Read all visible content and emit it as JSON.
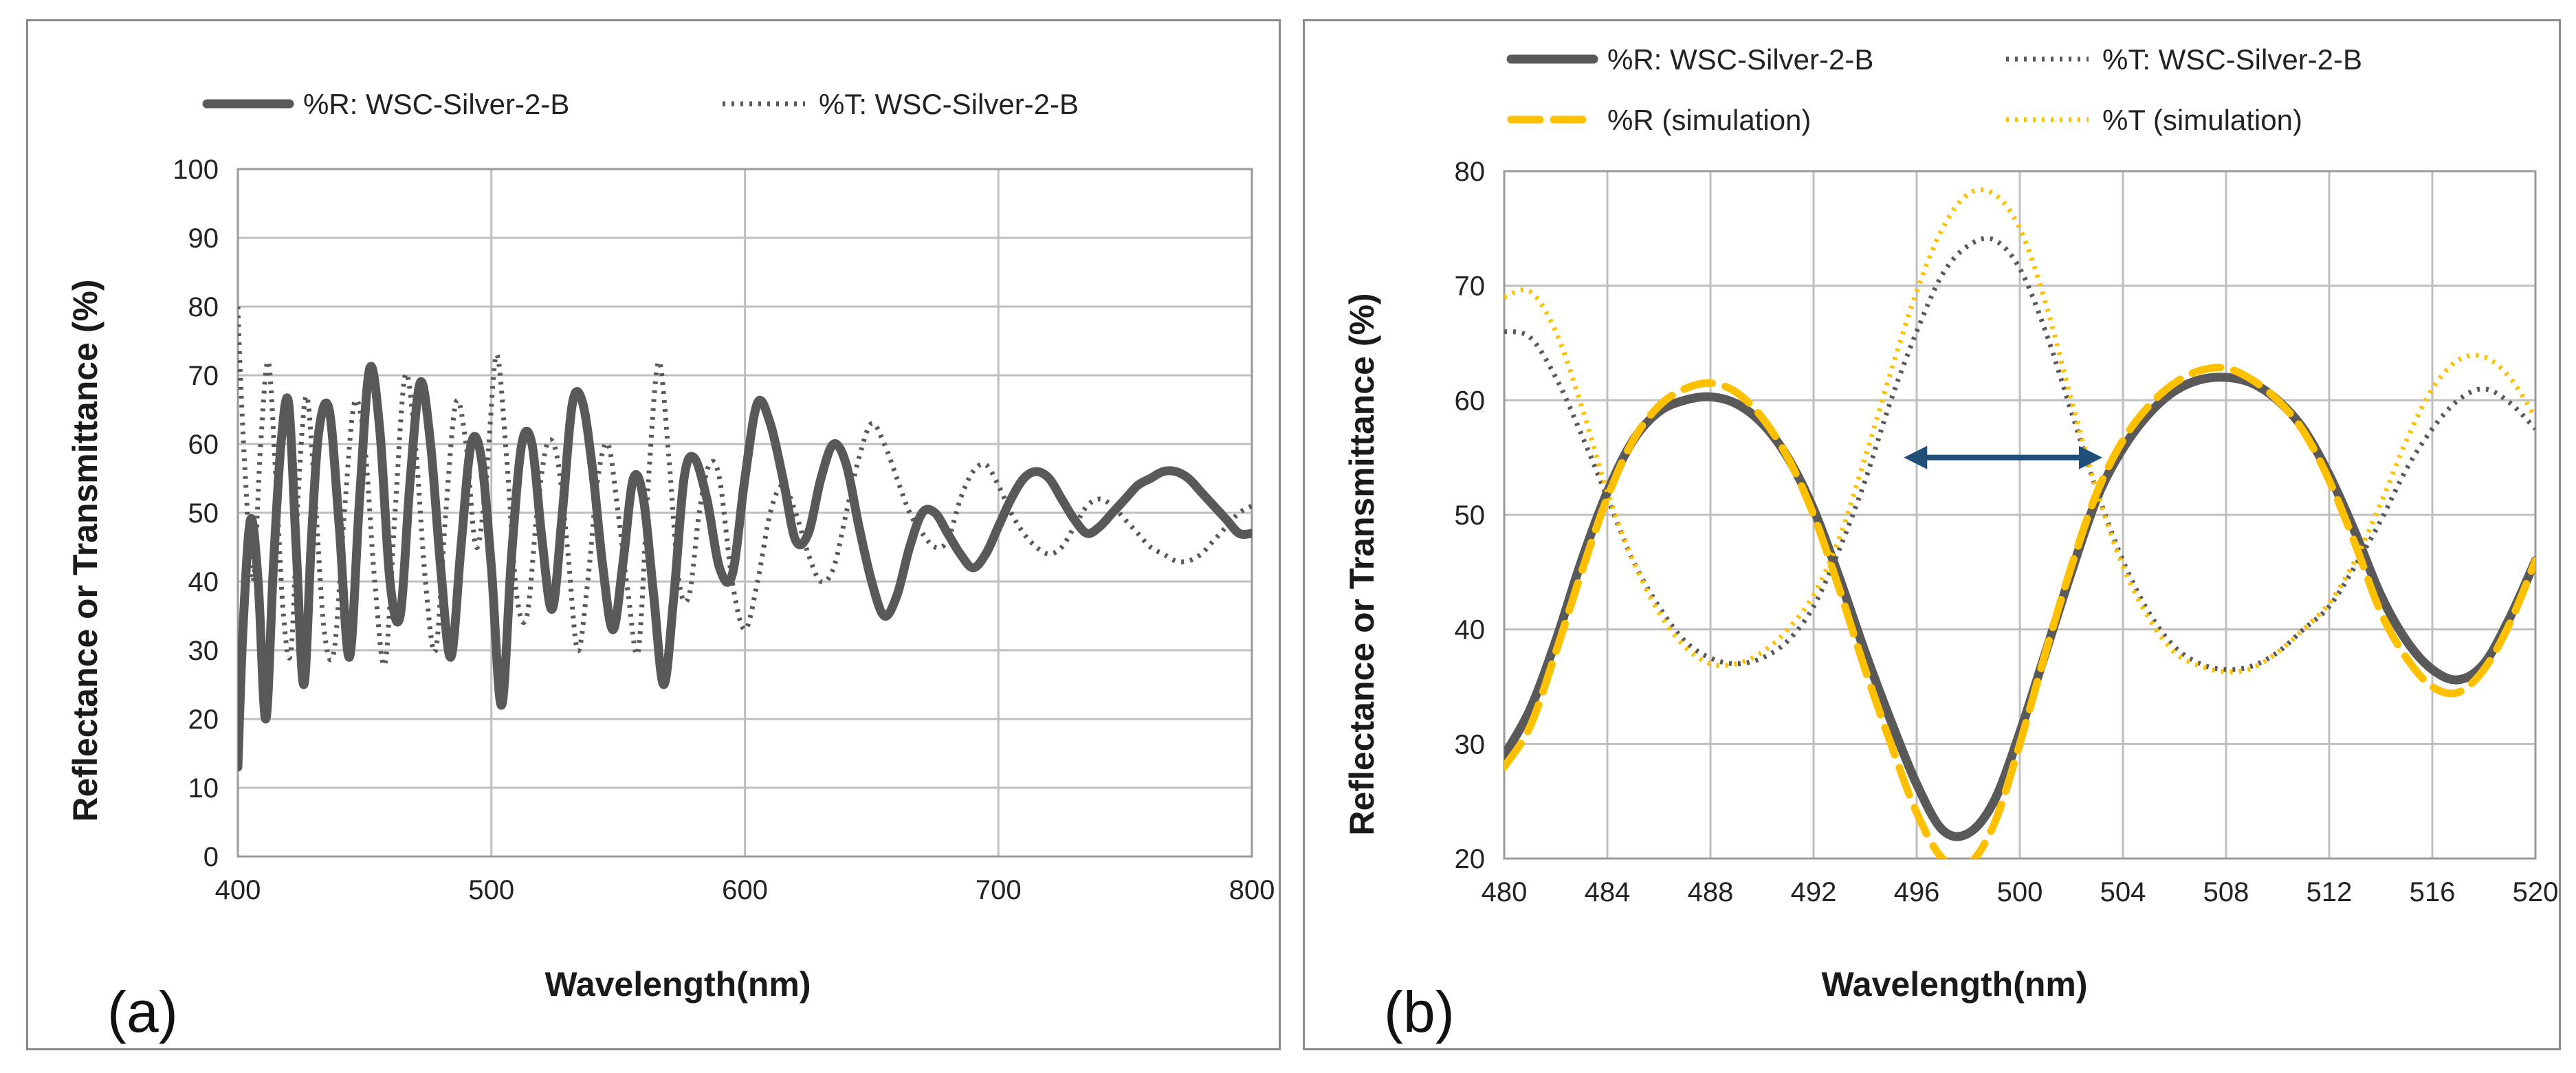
{
  "colors": {
    "measured": "#595959",
    "simulation": "#FFC000",
    "arrow": "#1F4E79",
    "grid": "#BFBFBF"
  },
  "chart_data": [
    {
      "type": "line",
      "panel_label": "(a)",
      "xlabel": "Wavelength(nm)",
      "ylabel": "Reflectance or Transmittance (%)",
      "xlim": [
        400,
        800
      ],
      "ylim": [
        0,
        100
      ],
      "xticks": [
        400,
        500,
        600,
        700,
        800
      ],
      "yticks": [
        0,
        10,
        20,
        30,
        40,
        50,
        60,
        70,
        80,
        90,
        100
      ],
      "grid": true,
      "legend": "top",
      "series": [
        {
          "name": "%R: WSC-Silver-2-B",
          "style": "solid",
          "color_key": "measured",
          "x": [
            400,
            402,
            405,
            408,
            411,
            414,
            417,
            420,
            423,
            426,
            429,
            432,
            436,
            440,
            444,
            448,
            452,
            456,
            460,
            464,
            468,
            472,
            476,
            480,
            484,
            488,
            492,
            496,
            500,
            504,
            508,
            512,
            516,
            520,
            524,
            528,
            532,
            536,
            540,
            544,
            548,
            552,
            556,
            560,
            564,
            568,
            572,
            576,
            580,
            585,
            590,
            595,
            600,
            605,
            610,
            615,
            620,
            625,
            630,
            635,
            640,
            645,
            650,
            655,
            660,
            665,
            670,
            675,
            680,
            685,
            690,
            695,
            700,
            705,
            710,
            715,
            720,
            725,
            730,
            735,
            740,
            745,
            750,
            755,
            760,
            765,
            770,
            775,
            780,
            785,
            790,
            795,
            800
          ],
          "y": [
            13,
            33,
            49,
            40,
            20,
            42,
            60,
            66,
            45,
            25,
            46,
            62,
            65,
            48,
            29,
            52,
            71,
            62,
            40,
            35,
            55,
            69,
            60,
            42,
            29,
            45,
            60,
            58,
            42,
            22,
            44,
            60,
            60,
            46,
            36,
            50,
            66,
            66,
            56,
            42,
            33,
            43,
            55,
            52,
            38,
            25,
            38,
            55,
            58,
            52,
            42,
            41,
            55,
            66,
            63,
            55,
            46,
            47,
            55,
            60,
            57,
            48,
            40,
            35,
            38,
            45,
            50,
            50,
            47,
            44,
            42,
            44,
            48,
            52,
            55,
            56,
            55,
            52,
            49,
            47,
            48,
            50,
            52,
            54,
            55,
            56,
            56,
            55,
            53,
            51,
            49,
            47,
            47
          ]
        },
        {
          "name": "%T: WSC-Silver-2-B",
          "style": "dotted",
          "color_key": "measured",
          "x": [
            400,
            401,
            403,
            406,
            409,
            412,
            415,
            418,
            421,
            424,
            427,
            430,
            434,
            438,
            442,
            446,
            450,
            454,
            458,
            462,
            466,
            470,
            474,
            478,
            482,
            486,
            490,
            494,
            498,
            502,
            506,
            510,
            514,
            518,
            522,
            526,
            530,
            534,
            538,
            542,
            546,
            550,
            554,
            558,
            562,
            566,
            570,
            574,
            578,
            582,
            586,
            590,
            595,
            600,
            605,
            610,
            615,
            620,
            625,
            630,
            635,
            640,
            645,
            650,
            655,
            660,
            665,
            670,
            675,
            680,
            685,
            690,
            695,
            700,
            705,
            710,
            715,
            720,
            725,
            730,
            735,
            740,
            745,
            750,
            755,
            760,
            765,
            770,
            775,
            780,
            785,
            790,
            795,
            800
          ],
          "y": [
            80,
            70,
            55,
            40,
            60,
            72,
            55,
            35,
            30,
            54,
            67,
            55,
            33,
            30,
            50,
            66,
            60,
            40,
            28,
            50,
            70,
            60,
            40,
            30,
            50,
            66,
            60,
            45,
            55,
            73,
            58,
            38,
            35,
            50,
            60,
            58,
            45,
            30,
            40,
            55,
            60,
            50,
            38,
            30,
            55,
            72,
            58,
            40,
            38,
            50,
            57,
            55,
            40,
            33,
            40,
            50,
            54,
            50,
            44,
            40,
            42,
            50,
            58,
            63,
            60,
            55,
            50,
            47,
            45,
            46,
            52,
            56,
            57,
            54,
            50,
            47,
            45,
            44,
            45,
            48,
            51,
            52,
            51,
            49,
            47,
            45,
            44,
            43,
            43,
            44,
            46,
            48,
            50,
            51
          ]
        }
      ]
    },
    {
      "type": "line",
      "panel_label": "(b)",
      "xlabel": "Wavelength(nm)",
      "ylabel": "Reflectance or Transmittance (%)",
      "xlim": [
        480,
        520
      ],
      "ylim": [
        20,
        80
      ],
      "xticks": [
        480,
        484,
        488,
        492,
        496,
        500,
        504,
        508,
        512,
        516,
        520
      ],
      "yticks": [
        20,
        30,
        40,
        50,
        60,
        70,
        80
      ],
      "grid": true,
      "legend": "top",
      "annotation": {
        "type": "double-arrow",
        "x_from": 495.5,
        "x_to": 503.2,
        "y": 55
      },
      "series": [
        {
          "name": "%R: WSC-Silver-2-B",
          "style": "solid",
          "color_key": "measured",
          "x": [
            480,
            481,
            482,
            483,
            484,
            485,
            486,
            487,
            488,
            489,
            490,
            491,
            492,
            493,
            494,
            495,
            496,
            497,
            498,
            499,
            500,
            501,
            502,
            503,
            504,
            505,
            506,
            507,
            508,
            509,
            510,
            511,
            512,
            513,
            514,
            515,
            516,
            517,
            518,
            519,
            520
          ],
          "y": [
            29,
            33,
            39,
            46,
            52,
            56.5,
            59,
            60,
            60.3,
            59.7,
            58,
            55,
            50.5,
            44.5,
            38,
            32,
            26.5,
            22.5,
            22.2,
            25,
            31,
            38,
            45,
            51.5,
            55.8,
            58.8,
            60.8,
            61.8,
            62,
            61.5,
            60,
            57.5,
            53.5,
            48.5,
            43,
            39,
            36.5,
            35.6,
            37,
            41,
            46
          ]
        },
        {
          "name": "%T: WSC-Silver-2-B",
          "style": "dotted",
          "color_key": "measured",
          "x": [
            480,
            481,
            482,
            483,
            484,
            485,
            486,
            487,
            488,
            489,
            490,
            491,
            492,
            493,
            494,
            495,
            496,
            497,
            498,
            499,
            500,
            501,
            502,
            503,
            504,
            505,
            506,
            507,
            508,
            509,
            510,
            511,
            512,
            513,
            514,
            515,
            516,
            517,
            518,
            519,
            520
          ],
          "y": [
            66,
            65.5,
            62,
            57,
            51.5,
            46,
            42,
            39,
            37.5,
            37,
            37.5,
            39,
            42,
            47,
            53,
            60,
            66,
            71,
            73.5,
            74,
            71.5,
            66,
            59,
            52,
            46,
            41.5,
            38.5,
            37,
            36.5,
            36.8,
            38,
            40,
            42,
            45.5,
            49.5,
            54,
            57.5,
            60,
            61,
            59.8,
            57.5
          ]
        },
        {
          "name": "%R (simulation)",
          "style": "dashed",
          "color_key": "simulation",
          "x": [
            480,
            481,
            482,
            483,
            484,
            485,
            486,
            487,
            488,
            489,
            490,
            491,
            492,
            493,
            494,
            495,
            496,
            497,
            498,
            499,
            500,
            501,
            502,
            503,
            504,
            505,
            506,
            507,
            508,
            509,
            510,
            511,
            512,
            513,
            514,
            515,
            516,
            517,
            518,
            519,
            520
          ],
          "y": [
            28,
            31.5,
            38,
            45,
            51.5,
            56.5,
            59.5,
            61,
            61.5,
            60.7,
            58.5,
            55,
            50,
            43.5,
            36.5,
            30,
            24,
            20,
            19.5,
            23,
            30,
            38,
            45.5,
            52,
            56.5,
            59.5,
            61.5,
            62.6,
            62.8,
            61.8,
            60,
            57.3,
            53,
            47.5,
            41.5,
            37.5,
            35,
            34.5,
            36.5,
            40.5,
            46
          ]
        },
        {
          "name": "%T (simulation)",
          "style": "dotted",
          "color_key": "simulation",
          "x": [
            480,
            481,
            482,
            483,
            484,
            485,
            486,
            487,
            488,
            489,
            490,
            491,
            492,
            493,
            494,
            495,
            496,
            497,
            498,
            499,
            500,
            501,
            502,
            503,
            504,
            505,
            506,
            507,
            508,
            509,
            510,
            511,
            512,
            513,
            514,
            515,
            516,
            517,
            518,
            519,
            520
          ],
          "y": [
            69,
            69.5,
            66,
            59.5,
            52,
            46,
            41.5,
            38.5,
            37,
            37,
            38,
            40,
            43,
            48,
            55,
            62.5,
            69.5,
            75,
            78,
            78,
            75,
            68.5,
            60,
            52,
            45.5,
            41,
            38,
            36.8,
            36.3,
            36.6,
            38,
            40,
            42.3,
            46,
            51,
            56.5,
            61,
            63.5,
            63.8,
            62,
            58.5
          ]
        }
      ]
    }
  ]
}
